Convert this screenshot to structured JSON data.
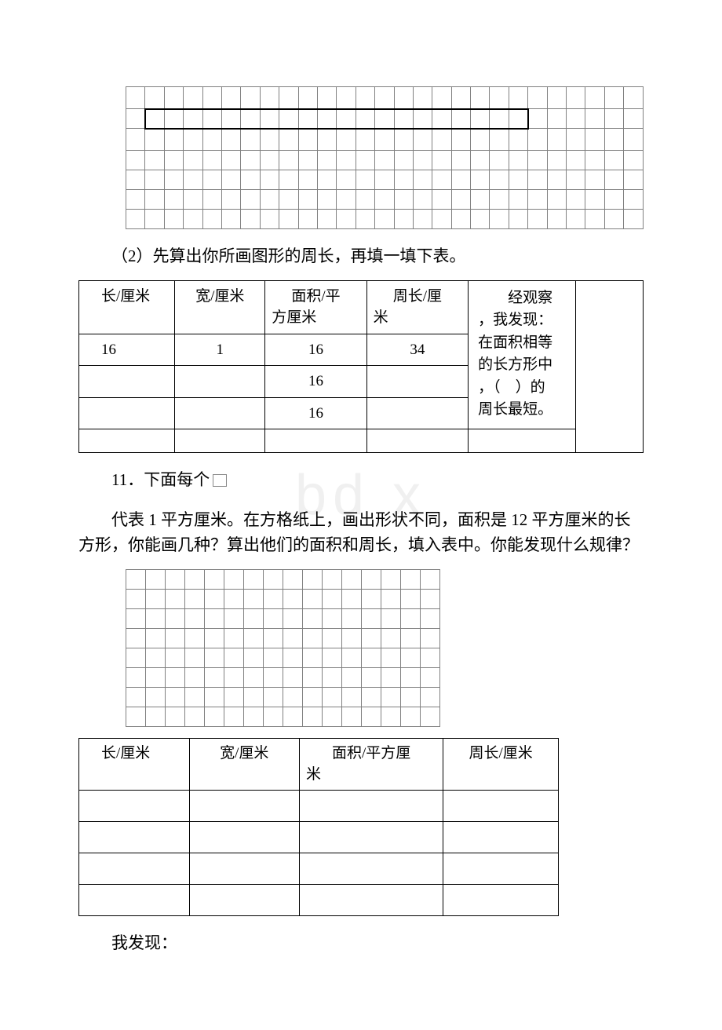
{
  "watermark": "bd    x",
  "grid1": {
    "cols": 27,
    "rows": 7,
    "rect_row": 1,
    "rect_col_start": 1,
    "rect_col_end": 20
  },
  "q2_text": "（2）先算出你所画图形的周长，再填一填下表。",
  "table1": {
    "headers": {
      "col1": "长/厘米",
      "col2": "宽/厘米",
      "col3_a": "面积/平",
      "col3_b": "方厘米",
      "col4_a": "周长/厘",
      "col4_b": "米"
    },
    "rows": [
      {
        "c1": "16",
        "c2": "1",
        "c3": "16",
        "c4": "34"
      },
      {
        "c1": "",
        "c2": "",
        "c3": "16",
        "c4": ""
      },
      {
        "c1": "",
        "c2": "",
        "c3": "16",
        "c4": ""
      }
    ],
    "merge_text_lines": [
      "经观察",
      "，我发现：",
      "在面积相等",
      "的长方形中",
      "，（ ）的",
      "周长最短。"
    ]
  },
  "q11_line1_a": "11．下面每个",
  "q11_body": "代表 1 平方厘米。在方格纸上，画出形状不同，面积是 12 平方厘米的长方形，你能画几种？算出他们的面积和周长，填入表中。你能发现什么规律？",
  "grid2": {
    "cols": 16,
    "rows": 8
  },
  "table2": {
    "headers": {
      "c1": "长/厘米",
      "c2": "宽/厘米",
      "c3_a": "面积/平方厘",
      "c3_b": "米",
      "c4": "周长/厘米"
    }
  },
  "footer": "我发现："
}
